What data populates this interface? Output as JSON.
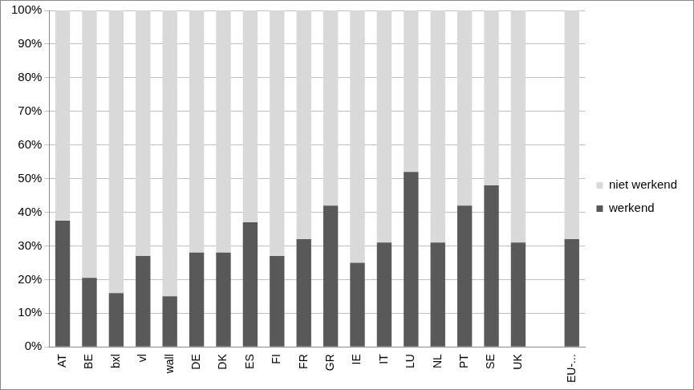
{
  "chart_data": {
    "type": "bar",
    "stacked": true,
    "categories": [
      "AT",
      "BE",
      "bxl",
      "vl",
      "wall",
      "DE",
      "DK",
      "ES",
      "FI",
      "FR",
      "GR",
      "IE",
      "IT",
      "LU",
      "NL",
      "PT",
      "SE",
      "UK",
      null,
      "EU-..."
    ],
    "series": [
      {
        "name": "werkend",
        "color": "#595959",
        "values": [
          37.5,
          20.5,
          16,
          27,
          15,
          28,
          28,
          37,
          27,
          32,
          42,
          25,
          31,
          52,
          31,
          42,
          48,
          31,
          null,
          32
        ]
      },
      {
        "name": "niet werkend",
        "color": "#d9d9d9",
        "values": [
          62.5,
          79.5,
          84,
          73,
          85,
          72,
          72,
          63,
          73,
          68,
          58,
          75,
          69,
          48,
          69,
          58,
          52,
          69,
          null,
          68
        ]
      }
    ],
    "ylim": [
      0,
      100
    ],
    "yticks": [
      {
        "value": 0,
        "label": "0%"
      },
      {
        "value": 10,
        "label": "10%"
      },
      {
        "value": 20,
        "label": "20%"
      },
      {
        "value": 30,
        "label": "30%"
      },
      {
        "value": 40,
        "label": "40%"
      },
      {
        "value": 50,
        "label": "50%"
      },
      {
        "value": 60,
        "label": "60%"
      },
      {
        "value": 70,
        "label": "70%"
      },
      {
        "value": 80,
        "label": "80%"
      },
      {
        "value": 90,
        "label": "90%"
      },
      {
        "value": 100,
        "label": "100%"
      }
    ],
    "grid": true,
    "legend": "right"
  }
}
